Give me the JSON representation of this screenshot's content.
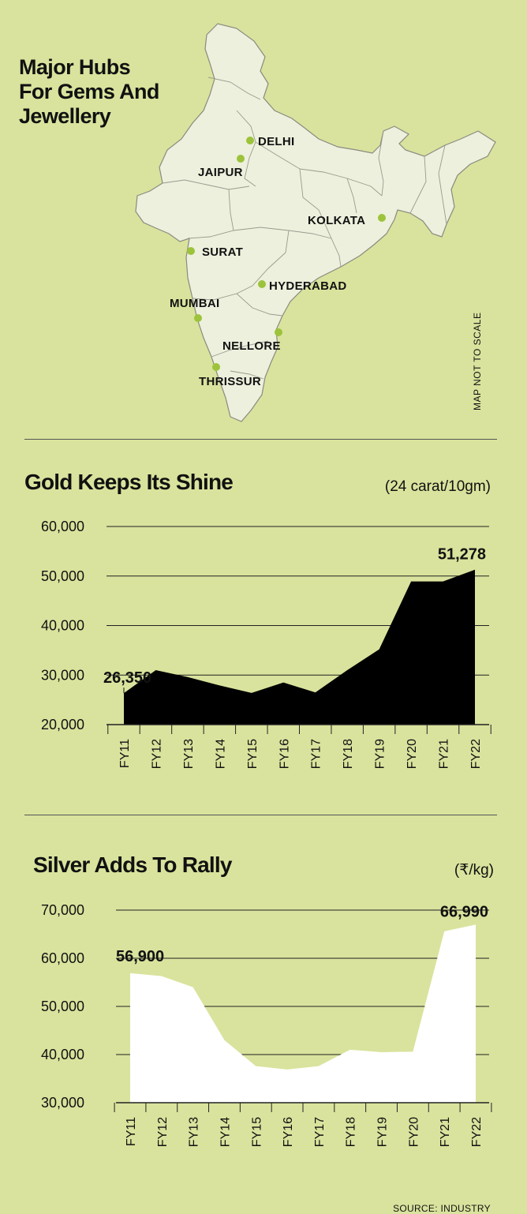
{
  "map": {
    "title_lines": [
      "Major Hubs",
      "For Gems And",
      "Jewellery"
    ],
    "note": "MAP NOT TO SCALE",
    "colors": {
      "land": "#edf0dc",
      "border": "#8a8a80",
      "dot": "#9cc33b"
    },
    "hubs": [
      {
        "name": "DELHI"
      },
      {
        "name": "JAIPUR"
      },
      {
        "name": "KOLKATA"
      },
      {
        "name": "SURAT"
      },
      {
        "name": "HYDERABAD"
      },
      {
        "name": "MUMBAI"
      },
      {
        "name": "NELLORE"
      },
      {
        "name": "THRISSUR"
      }
    ]
  },
  "gold": {
    "title": "Gold Keeps Its Shine",
    "unit": "(24 carat/10gm)"
  },
  "silver": {
    "title": "Silver Adds To Rally",
    "unit": "(₹/kg)"
  },
  "source": "SOURCE: INDUSTRY",
  "chart_data": [
    {
      "type": "area",
      "title": "Gold Keeps Its Shine",
      "unit": "(24 carat/10gm)",
      "categories": [
        "FY11",
        "FY12",
        "FY13",
        "FY14",
        "FY15",
        "FY16",
        "FY17",
        "FY18",
        "FY19",
        "FY20",
        "FY21",
        "FY22"
      ],
      "values": [
        26350,
        31000,
        29600,
        27900,
        26400,
        28500,
        26500,
        31000,
        35200,
        48900,
        48900,
        51278
      ],
      "yticks": [
        "20,000",
        "30,000",
        "40,000",
        "50,000",
        "60,000"
      ],
      "ylim": [
        20000,
        60000
      ],
      "annotations": [
        {
          "category": "FY11",
          "label": "26,350"
        },
        {
          "category": "FY22",
          "label": "51,278"
        }
      ],
      "color": "#000000",
      "grid": true
    },
    {
      "type": "area",
      "title": "Silver Adds To Rally",
      "unit": "(₹/kg)",
      "categories": [
        "FY11",
        "FY12",
        "FY13",
        "FY14",
        "FY15",
        "FY16",
        "FY17",
        "FY18",
        "FY19",
        "FY20",
        "FY21",
        "FY22"
      ],
      "values": [
        56900,
        56300,
        54000,
        43000,
        37600,
        36900,
        37600,
        41000,
        40500,
        40600,
        65600,
        66990
      ],
      "yticks": [
        "30,000",
        "40,000",
        "50,000",
        "60,000",
        "70,000"
      ],
      "ylim": [
        30000,
        70000
      ],
      "annotations": [
        {
          "category": "FY11",
          "label": "56,900"
        },
        {
          "category": "FY22",
          "label": "66,990"
        }
      ],
      "color": "#ffffff",
      "grid": true
    }
  ]
}
